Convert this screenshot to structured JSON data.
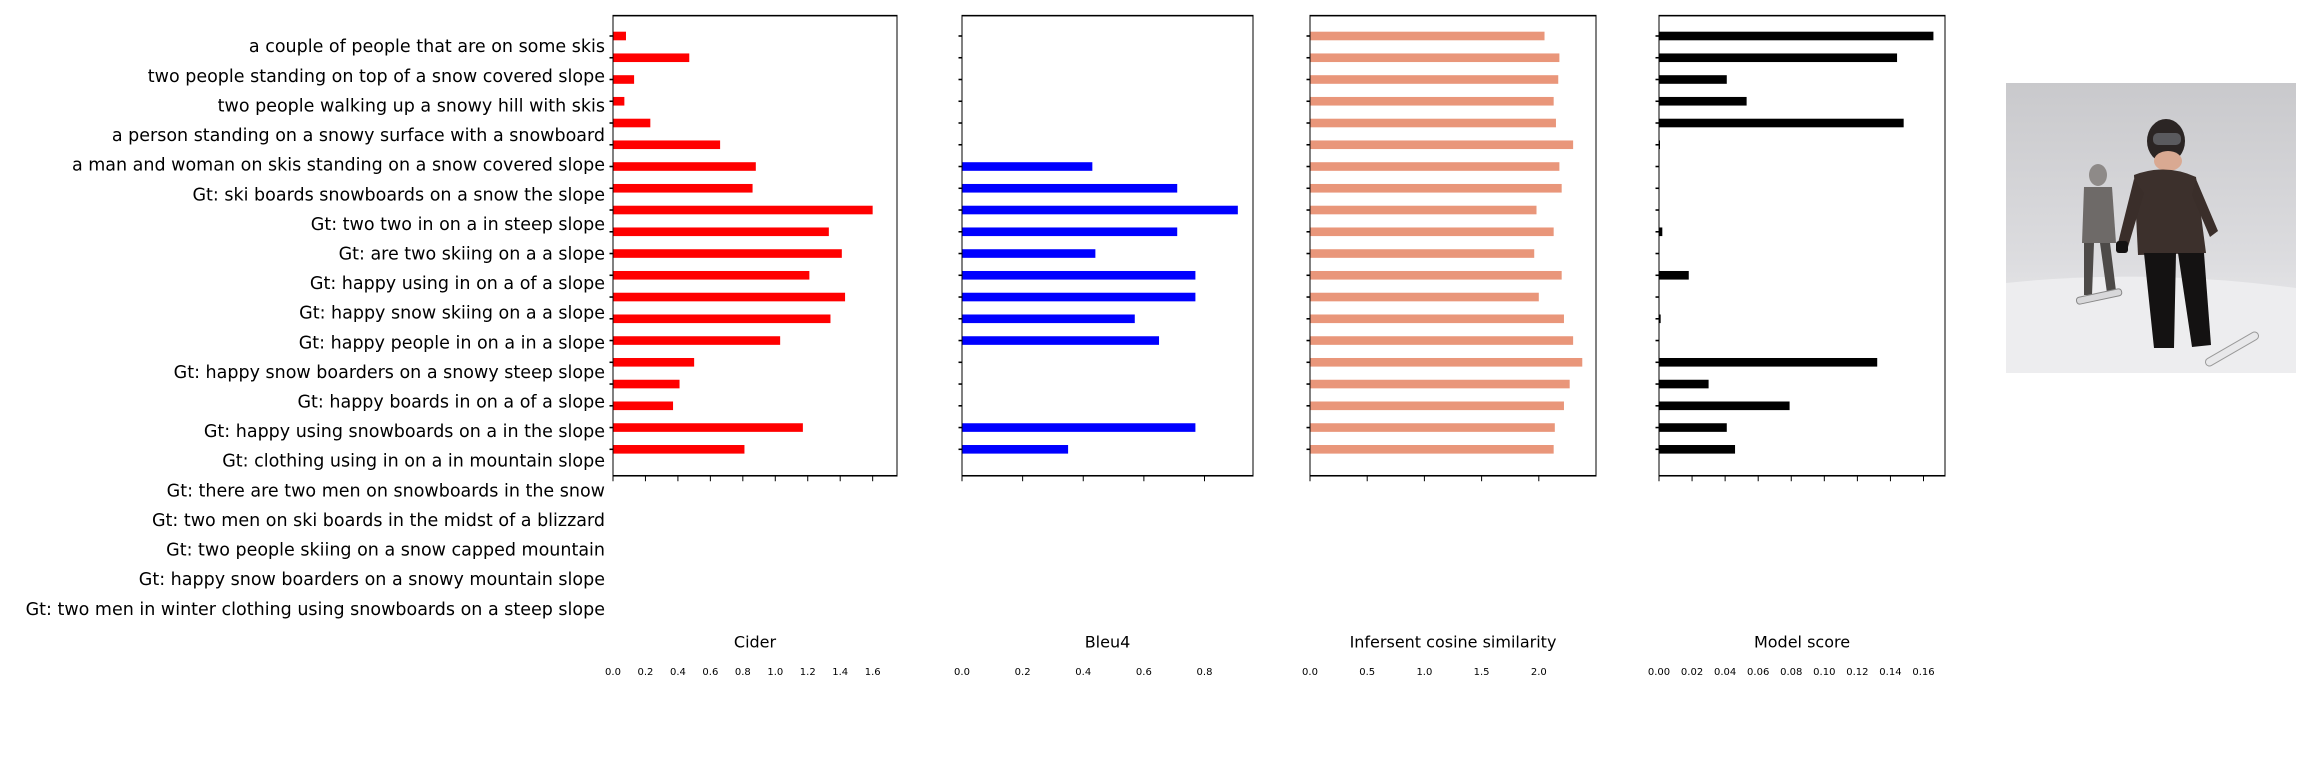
{
  "chart_data": [
    {
      "type": "bar",
      "orientation": "horizontal",
      "xlabel": "Cider",
      "xlim": [
        0,
        1.75
      ],
      "xticks": [
        0.0,
        0.2,
        0.4,
        0.6,
        0.8,
        1.0,
        1.2,
        1.4,
        1.6
      ],
      "xtick_labels": [
        "0.0",
        "0.2",
        "0.4",
        "0.6",
        "0.8",
        "1.0",
        "1.2",
        "1.4",
        "1.6"
      ],
      "color": "#ff0000",
      "values": [
        0.08,
        0.47,
        0.13,
        0.07,
        0.23,
        0.66,
        0.88,
        0.86,
        1.6,
        1.33,
        1.41,
        1.21,
        1.43,
        1.34,
        1.03,
        0.5,
        0.41,
        0.37,
        1.17,
        0.81
      ]
    },
    {
      "type": "bar",
      "orientation": "horizontal",
      "xlabel": "Bleu4",
      "xlim": [
        0,
        0.96
      ],
      "xticks": [
        0.0,
        0.2,
        0.4,
        0.6,
        0.8
      ],
      "xtick_labels": [
        "0.0",
        "0.2",
        "0.4",
        "0.6",
        "0.8"
      ],
      "color": "#0000ff",
      "values": [
        0,
        0,
        0,
        0,
        0,
        0,
        0.43,
        0.71,
        0.91,
        0.71,
        0.44,
        0.77,
        0.77,
        0.57,
        0.65,
        0,
        0,
        0,
        0.77,
        0.35
      ]
    },
    {
      "type": "bar",
      "orientation": "horizontal",
      "xlabel": "Infersent cosine similarity",
      "xlim": [
        0,
        2.5
      ],
      "xticks": [
        0.0,
        0.5,
        1.0,
        1.5,
        2.0
      ],
      "xtick_labels": [
        "0.0",
        "0.5",
        "1.0",
        "1.5",
        "2.0"
      ],
      "color": "#e9967a",
      "values": [
        2.05,
        2.18,
        2.17,
        2.13,
        2.15,
        2.3,
        2.18,
        2.2,
        1.98,
        2.13,
        1.96,
        2.2,
        2.0,
        2.22,
        2.3,
        2.38,
        2.27,
        2.22,
        2.14,
        2.13
      ]
    },
    {
      "type": "bar",
      "orientation": "horizontal",
      "xlabel": "Model score",
      "xlim": [
        0,
        0.173
      ],
      "xticks": [
        0.0,
        0.02,
        0.04,
        0.06,
        0.08,
        0.1,
        0.12,
        0.14,
        0.16
      ],
      "xtick_labels": [
        "0.00",
        "0.02",
        "0.04",
        "0.06",
        "0.08",
        "0.10",
        "0.12",
        "0.14",
        "0.16"
      ],
      "color": "#000000",
      "values": [
        0.166,
        0.144,
        0.041,
        0.053,
        0.148,
        0.0002,
        0,
        0,
        0,
        0.002,
        0,
        0.018,
        0,
        0.001,
        0,
        0.132,
        0.03,
        0.079,
        0.041,
        0.046
      ]
    }
  ],
  "categories": [
    "a couple of people that are on some skis",
    "two people standing on top of a snow covered slope",
    "two people walking up a snowy hill with skis",
    "a person standing on a snowy surface with a snowboard",
    "a man and woman on skis standing on a snow covered slope",
    "Gt: ski boards snowboards on a snow the slope",
    "Gt: two two in on a in steep slope",
    "Gt: are two skiing on a a slope",
    "Gt: happy using in on a of a slope",
    "Gt: happy snow skiing on a a slope",
    "Gt: happy people in on a in a slope",
    "Gt: happy snow boarders on a snowy steep slope",
    "Gt: happy boards in on a of a slope",
    "Gt: happy using snowboards on a in the slope",
    "Gt: clothing using in on a in mountain slope",
    "Gt: there are two men on snowboards in the snow",
    "Gt: two men on ski boards in the midst of a blizzard",
    "Gt: two people skiing on a snow capped mountain",
    "Gt: happy snow boarders on a snowy mountain slope",
    "Gt: two men in winter clothing using snowboards on a steep slope"
  ],
  "photo": {
    "description_icon": "snowboarders-photo",
    "sky_color": "#cfcfd2",
    "snow_color": "#ececee"
  }
}
